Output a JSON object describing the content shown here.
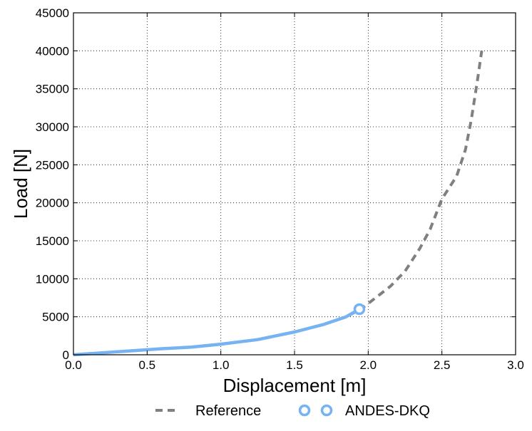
{
  "chart_data": {
    "type": "line",
    "title": "",
    "xlabel": "Displacement [m]",
    "ylabel": "Load [N]",
    "xlim": [
      0,
      3.0
    ],
    "ylim": [
      0,
      45000
    ],
    "xticks": [
      0.0,
      0.5,
      1.0,
      1.5,
      2.0,
      2.5,
      3.0
    ],
    "xtick_labels": [
      "0.0",
      "0.5",
      "1.0",
      "1.5",
      "2.0",
      "2.5",
      "3.0"
    ],
    "yticks": [
      0,
      5000,
      10000,
      15000,
      20000,
      25000,
      30000,
      35000,
      40000,
      45000
    ],
    "ytick_labels": [
      "0",
      "5000",
      "10000",
      "15000",
      "20000",
      "25000",
      "30000",
      "35000",
      "40000",
      "45000"
    ],
    "grid": true,
    "legend_position": "bottom-center",
    "series": [
      {
        "name": "Reference",
        "style": "dashed",
        "color": "#808080",
        "x": [
          0.0,
          0.3,
          0.6,
          0.8,
          1.0,
          1.25,
          1.5,
          1.7,
          1.85,
          1.95,
          2.05,
          2.15,
          2.25,
          2.35,
          2.42,
          2.48,
          2.5,
          2.6,
          2.66,
          2.7,
          2.74,
          2.77
        ],
        "y": [
          0,
          400,
          800,
          1000,
          1400,
          2000,
          3000,
          4000,
          5000,
          6000,
          7500,
          9000,
          11000,
          14000,
          16500,
          19500,
          20500,
          23500,
          27000,
          31000,
          36000,
          40000
        ]
      },
      {
        "name": "ANDES-DKQ",
        "style": "solid",
        "color": "#77b3f2",
        "x": [
          0.0,
          0.3,
          0.6,
          0.8,
          1.0,
          1.25,
          1.5,
          1.7,
          1.85,
          1.94
        ],
        "y": [
          0,
          400,
          800,
          1000,
          1400,
          2000,
          3000,
          4000,
          5000,
          6000
        ],
        "marker_last": true
      }
    ]
  }
}
